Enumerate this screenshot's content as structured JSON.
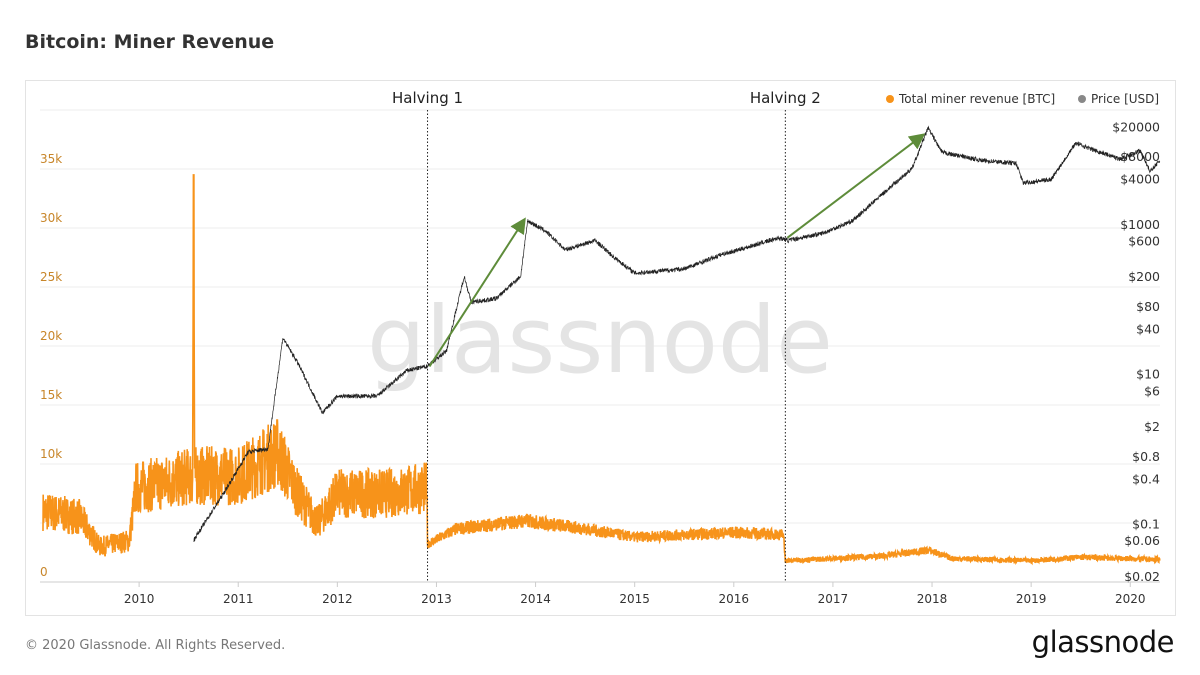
{
  "title": "Bitcoin: Miner Revenue",
  "footer": "© 2020 Glassnode. All Rights Reserved.",
  "logo": "glassnode",
  "watermark": "glassnode",
  "chart_data": {
    "type": "line",
    "title": "Bitcoin: Miner Revenue",
    "legend": [
      {
        "name": "Total miner revenue [BTC]",
        "color": "#f7931a"
      },
      {
        "name": "Price [USD]",
        "color": "#888888"
      }
    ],
    "legend_position": "top-right",
    "x_range": [
      2009.0,
      2020.3
    ],
    "x_ticks": [
      "2010",
      "2011",
      "2012",
      "2013",
      "2014",
      "2015",
      "2016",
      "2017",
      "2018",
      "2019",
      "2020"
    ],
    "y_left": {
      "range": [
        0,
        40000
      ],
      "ticks": [
        0,
        5000,
        10000,
        15000,
        20000,
        25000,
        30000,
        35000
      ],
      "tick_labels": [
        "0",
        "",
        "10k",
        "15k",
        "20k",
        "25k",
        "30k",
        "35k"
      ],
      "color": "#c8862a"
    },
    "y_right": {
      "scale": "log",
      "range": [
        0.0166,
        33000
      ],
      "ticks": [
        20000,
        8000,
        4000,
        1000,
        600,
        200,
        80,
        40,
        10,
        6,
        2,
        0.8,
        0.4,
        0.1,
        0.06,
        0.02
      ],
      "tick_labels": [
        "$20000",
        "$8000",
        "$4000",
        "$1000",
        "$600",
        "$200",
        "$80",
        "$40",
        "$10",
        "$6",
        "$2",
        "$0.8",
        "$0.4",
        "$0.1",
        "$0.06",
        "$0.02"
      ]
    },
    "grid": true,
    "series": [
      {
        "name": "Total miner revenue [BTC]",
        "axis": "left",
        "points": [
          [
            2009.03,
            6000
          ],
          [
            2009.4,
            5500
          ],
          [
            2009.6,
            3000
          ],
          [
            2009.9,
            3500
          ],
          [
            2009.97,
            8000
          ],
          [
            2010.3,
            8500
          ],
          [
            2010.54,
            9000
          ],
          [
            2010.55,
            34500
          ],
          [
            2010.56,
            9000
          ],
          [
            2010.8,
            9000
          ],
          [
            2011.0,
            9000
          ],
          [
            2011.4,
            11000
          ],
          [
            2011.6,
            7500
          ],
          [
            2011.8,
            5000
          ],
          [
            2012.0,
            7500
          ],
          [
            2012.5,
            7500
          ],
          [
            2012.9,
            8000
          ],
          [
            2012.91,
            3200
          ],
          [
            2013.2,
            4500
          ],
          [
            2013.9,
            5200
          ],
          [
            2014.5,
            4500
          ],
          [
            2015.0,
            3800
          ],
          [
            2016.0,
            4200
          ],
          [
            2016.5,
            4000
          ],
          [
            2016.52,
            1800
          ],
          [
            2017.5,
            2200
          ],
          [
            2017.97,
            2700
          ],
          [
            2018.2,
            2000
          ],
          [
            2019.0,
            1800
          ],
          [
            2019.5,
            2100
          ],
          [
            2020.3,
            1900
          ]
        ]
      },
      {
        "name": "Price [USD]",
        "axis": "right",
        "points": [
          [
            2010.55,
            0.06
          ],
          [
            2010.85,
            0.25
          ],
          [
            2011.1,
            0.9
          ],
          [
            2011.3,
            1
          ],
          [
            2011.45,
            30
          ],
          [
            2011.6,
            14
          ],
          [
            2011.85,
            3
          ],
          [
            2012.0,
            5
          ],
          [
            2012.4,
            5
          ],
          [
            2012.7,
            11
          ],
          [
            2012.9,
            12.5
          ],
          [
            2013.1,
            20
          ],
          [
            2013.28,
            200
          ],
          [
            2013.35,
            90
          ],
          [
            2013.6,
            100
          ],
          [
            2013.85,
            200
          ],
          [
            2013.92,
            1100
          ],
          [
            2014.1,
            800
          ],
          [
            2014.3,
            450
          ],
          [
            2014.6,
            600
          ],
          [
            2014.8,
            350
          ],
          [
            2015.0,
            220
          ],
          [
            2015.5,
            250
          ],
          [
            2015.9,
            400
          ],
          [
            2016.0,
            430
          ],
          [
            2016.45,
            650
          ],
          [
            2016.55,
            600
          ],
          [
            2016.9,
            750
          ],
          [
            2017.2,
            1100
          ],
          [
            2017.5,
            2500
          ],
          [
            2017.8,
            5500
          ],
          [
            2017.96,
            19000
          ],
          [
            2018.1,
            9000
          ],
          [
            2018.5,
            7000
          ],
          [
            2018.85,
            6400
          ],
          [
            2018.92,
            3500
          ],
          [
            2019.2,
            3900
          ],
          [
            2019.45,
            12000
          ],
          [
            2019.6,
            10000
          ],
          [
            2019.9,
            7300
          ],
          [
            2020.1,
            9500
          ],
          [
            2020.2,
            5000
          ],
          [
            2020.3,
            7000
          ]
        ]
      }
    ],
    "annotations": [
      {
        "label": "Halving 1",
        "x": 2012.91
      },
      {
        "label": "Halving 2",
        "x": 2016.52
      }
    ],
    "arrows": [
      {
        "from": [
          2012.93,
          12.5
        ],
        "to": [
          2013.88,
          1100
        ],
        "color": "#5e8c3a"
      },
      {
        "from": [
          2016.54,
          650
        ],
        "to": [
          2017.9,
          15000
        ],
        "color": "#5e8c3a"
      }
    ]
  }
}
